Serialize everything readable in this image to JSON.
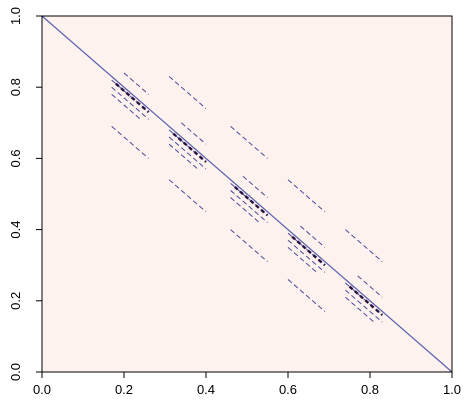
{
  "chart_data": {
    "type": "line",
    "title": "",
    "xlabel": "",
    "ylabel": "",
    "xlim": [
      0,
      1
    ],
    "ylim": [
      0,
      1
    ],
    "xticks": [
      "0.0",
      "0.2",
      "0.4",
      "0.6",
      "0.8",
      "1.0"
    ],
    "yticks": [
      "0.0",
      "0.2",
      "0.4",
      "0.6",
      "0.8",
      "1.0"
    ],
    "grid": false,
    "background_color": "#FDF2EE",
    "diagonal_color": "#5A62B0",
    "dash_color": "#4A4A9A",
    "dark_color": "#2A1040",
    "series": [
      {
        "values": [
          [
            0,
            1
          ],
          [
            1,
            0
          ]
        ]
      }
    ],
    "dashed_segments": [
      [
        [
          0.17,
          0.83
        ],
        [
          0.26,
          0.74
        ]
      ],
      [
        [
          0.17,
          0.82
        ],
        [
          0.26,
          0.73
        ]
      ],
      [
        [
          0.17,
          0.8
        ],
        [
          0.26,
          0.71
        ]
      ],
      [
        [
          0.2,
          0.84
        ],
        [
          0.26,
          0.78
        ]
      ],
      [
        [
          0.17,
          0.78
        ],
        [
          0.24,
          0.71
        ]
      ],
      [
        [
          0.31,
          0.69
        ],
        [
          0.4,
          0.6
        ]
      ],
      [
        [
          0.31,
          0.68
        ],
        [
          0.4,
          0.59
        ]
      ],
      [
        [
          0.31,
          0.66
        ],
        [
          0.4,
          0.57
        ]
      ],
      [
        [
          0.34,
          0.7
        ],
        [
          0.4,
          0.64
        ]
      ],
      [
        [
          0.31,
          0.64
        ],
        [
          0.38,
          0.57
        ]
      ],
      [
        [
          0.46,
          0.54
        ],
        [
          0.55,
          0.45
        ]
      ],
      [
        [
          0.46,
          0.53
        ],
        [
          0.55,
          0.44
        ]
      ],
      [
        [
          0.46,
          0.51
        ],
        [
          0.55,
          0.42
        ]
      ],
      [
        [
          0.49,
          0.55
        ],
        [
          0.55,
          0.49
        ]
      ],
      [
        [
          0.46,
          0.49
        ],
        [
          0.53,
          0.42
        ]
      ],
      [
        [
          0.6,
          0.4
        ],
        [
          0.69,
          0.31
        ]
      ],
      [
        [
          0.6,
          0.39
        ],
        [
          0.69,
          0.3
        ]
      ],
      [
        [
          0.6,
          0.37
        ],
        [
          0.69,
          0.28
        ]
      ],
      [
        [
          0.63,
          0.41
        ],
        [
          0.69,
          0.35
        ]
      ],
      [
        [
          0.6,
          0.35
        ],
        [
          0.67,
          0.28
        ]
      ],
      [
        [
          0.74,
          0.26
        ],
        [
          0.83,
          0.17
        ]
      ],
      [
        [
          0.74,
          0.25
        ],
        [
          0.83,
          0.16
        ]
      ],
      [
        [
          0.74,
          0.23
        ],
        [
          0.83,
          0.14
        ]
      ],
      [
        [
          0.77,
          0.27
        ],
        [
          0.83,
          0.21
        ]
      ],
      [
        [
          0.74,
          0.21
        ],
        [
          0.81,
          0.14
        ]
      ],
      [
        [
          0.31,
          0.83
        ],
        [
          0.4,
          0.74
        ]
      ],
      [
        [
          0.46,
          0.69
        ],
        [
          0.55,
          0.6
        ]
      ],
      [
        [
          0.6,
          0.54
        ],
        [
          0.69,
          0.45
        ]
      ],
      [
        [
          0.74,
          0.4
        ],
        [
          0.83,
          0.31
        ]
      ],
      [
        [
          0.17,
          0.69
        ],
        [
          0.26,
          0.6
        ]
      ],
      [
        [
          0.31,
          0.54
        ],
        [
          0.4,
          0.45
        ]
      ],
      [
        [
          0.46,
          0.4
        ],
        [
          0.55,
          0.31
        ]
      ],
      [
        [
          0.6,
          0.26
        ],
        [
          0.69,
          0.17
        ]
      ]
    ],
    "dark_segments": [
      [
        [
          0.18,
          0.81
        ],
        [
          0.26,
          0.73
        ]
      ],
      [
        [
          0.32,
          0.67
        ],
        [
          0.4,
          0.59
        ]
      ],
      [
        [
          0.47,
          0.52
        ],
        [
          0.55,
          0.44
        ]
      ],
      [
        [
          0.61,
          0.38
        ],
        [
          0.69,
          0.3
        ]
      ],
      [
        [
          0.75,
          0.24
        ],
        [
          0.83,
          0.16
        ]
      ]
    ]
  }
}
